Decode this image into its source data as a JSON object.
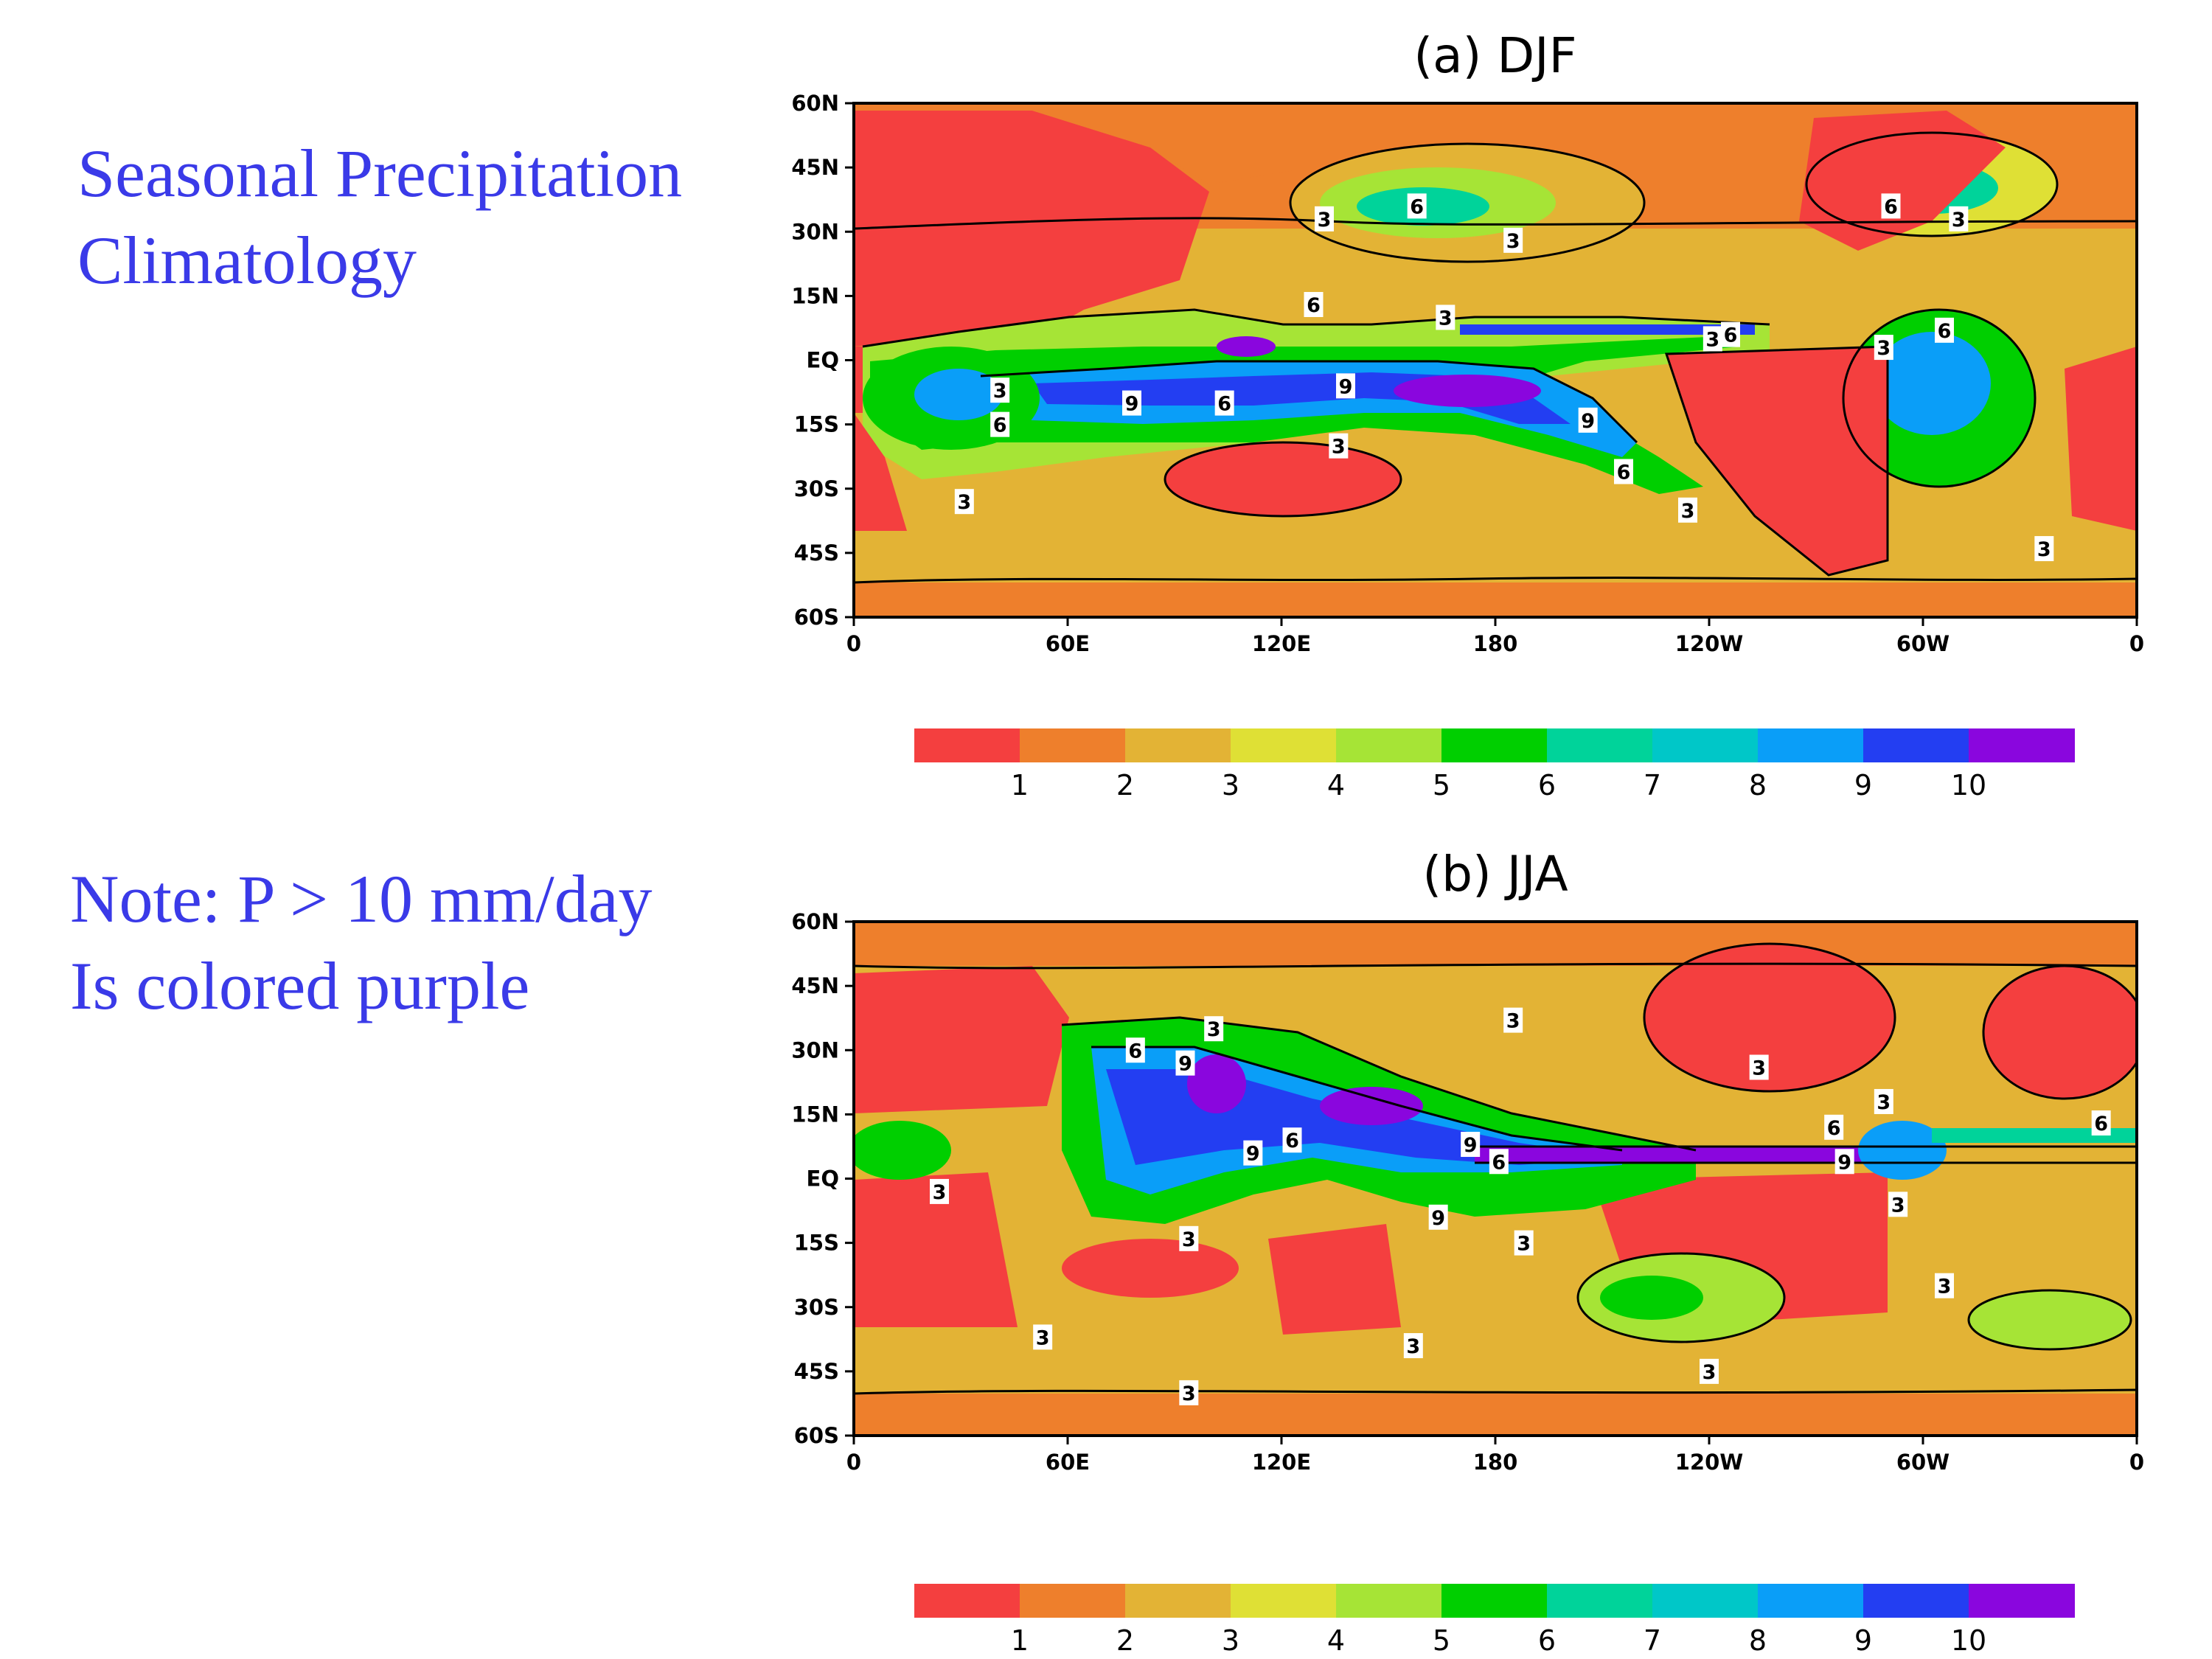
{
  "slide": {
    "title_line1": "Seasonal Precipitation",
    "title_line2": "Climatology",
    "note_line1": "Note: P > 10 mm/day",
    "note_line2": "Is colored purple"
  },
  "colors": {
    "levels": [
      "#f43f3f",
      "#ee7f2c",
      "#e3b335",
      "#dfe035",
      "#a6e436",
      "#00cf00",
      "#00d39a",
      "#00c7c8",
      "#0a9ef8",
      "#233ef2",
      "#8a06de"
    ],
    "land": "#ffffff",
    "side_text": "#3a3ae8"
  },
  "axes": {
    "lat_ticks": [
      "60N",
      "45N",
      "30N",
      "15N",
      "EQ",
      "15S",
      "30S",
      "45S",
      "60S"
    ],
    "lon_ticks": [
      "0",
      "60E",
      "120E",
      "180",
      "120W",
      "60W",
      "0"
    ]
  },
  "colorbar": {
    "labels": [
      "1",
      "2",
      "3",
      "4",
      "5",
      "6",
      "7",
      "8",
      "9",
      "10"
    ]
  },
  "panels": [
    {
      "title": "(a) DJF",
      "contour_labels": [
        {
          "text": "3",
          "lon": 132,
          "lat": 33
        },
        {
          "text": "6",
          "lon": 158,
          "lat": 36
        },
        {
          "text": "3",
          "lon": 185,
          "lat": 28
        },
        {
          "text": "6",
          "lon": 291,
          "lat": 36
        },
        {
          "text": "3",
          "lon": 310,
          "lat": 33
        },
        {
          "text": "6",
          "lon": 129,
          "lat": 13
        },
        {
          "text": "3",
          "lon": 166,
          "lat": 10
        },
        {
          "text": "3",
          "lon": 241,
          "lat": 5
        },
        {
          "text": "6",
          "lon": 246,
          "lat": 6
        },
        {
          "text": "3",
          "lon": 289,
          "lat": 3
        },
        {
          "text": "6",
          "lon": 306,
          "lat": 7
        },
        {
          "text": "3",
          "lon": 41,
          "lat": -7
        },
        {
          "text": "6",
          "lon": 41,
          "lat": -15
        },
        {
          "text": "9",
          "lon": 78,
          "lat": -10
        },
        {
          "text": "6",
          "lon": 104,
          "lat": -10
        },
        {
          "text": "9",
          "lon": 138,
          "lat": -6
        },
        {
          "text": "3",
          "lon": 136,
          "lat": -20
        },
        {
          "text": "9",
          "lon": 206,
          "lat": -14
        },
        {
          "text": "6",
          "lon": 216,
          "lat": -26
        },
        {
          "text": "3",
          "lon": 234,
          "lat": -35
        },
        {
          "text": "3",
          "lon": 31,
          "lat": -33
        },
        {
          "text": "3",
          "lon": 334,
          "lat": -44
        }
      ]
    },
    {
      "title": "(b) JJA",
      "contour_labels": [
        {
          "text": "3",
          "lon": 185,
          "lat": 37
        },
        {
          "text": "3",
          "lon": 101,
          "lat": 35
        },
        {
          "text": "6",
          "lon": 79,
          "lat": 30
        },
        {
          "text": "9",
          "lon": 93,
          "lat": 27
        },
        {
          "text": "3",
          "lon": 254,
          "lat": 26
        },
        {
          "text": "3",
          "lon": 289,
          "lat": 18
        },
        {
          "text": "6",
          "lon": 275,
          "lat": 12
        },
        {
          "text": "6",
          "lon": 350,
          "lat": 13
        },
        {
          "text": "9",
          "lon": 173,
          "lat": 8
        },
        {
          "text": "6",
          "lon": 123,
          "lat": 9
        },
        {
          "text": "9",
          "lon": 112,
          "lat": 6
        },
        {
          "text": "6",
          "lon": 181,
          "lat": 4
        },
        {
          "text": "9",
          "lon": 278,
          "lat": 4
        },
        {
          "text": "3",
          "lon": 24,
          "lat": -3
        },
        {
          "text": "3",
          "lon": 293,
          "lat": -6
        },
        {
          "text": "9",
          "lon": 164,
          "lat": -9
        },
        {
          "text": "3",
          "lon": 94,
          "lat": -14
        },
        {
          "text": "3",
          "lon": 188,
          "lat": -15
        },
        {
          "text": "3",
          "lon": 306,
          "lat": -25
        },
        {
          "text": "3",
          "lon": 53,
          "lat": -37
        },
        {
          "text": "3",
          "lon": 157,
          "lat": -39
        },
        {
          "text": "3",
          "lon": 240,
          "lat": -45
        },
        {
          "text": "3",
          "lon": 94,
          "lat": -50
        }
      ]
    }
  ]
}
